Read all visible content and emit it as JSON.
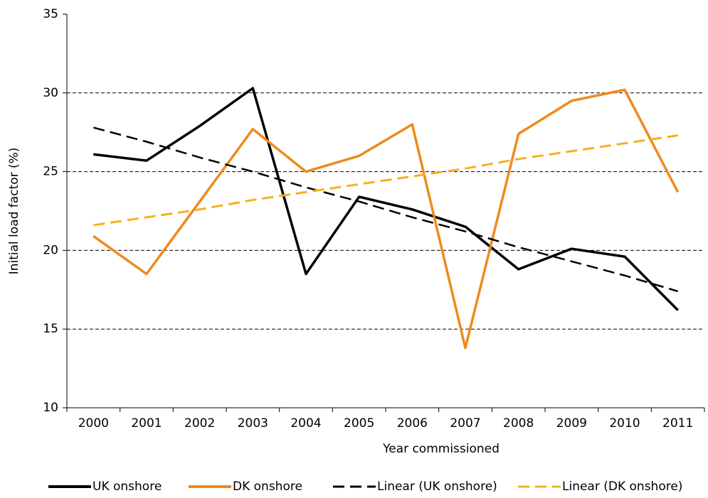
{
  "chart_data": {
    "type": "line",
    "x_label": "Year commissioned",
    "y_label": "Initial load factor (%)",
    "categories": [
      "2000",
      "2001",
      "2002",
      "2003",
      "2004",
      "2005",
      "2006",
      "2007",
      "2008",
      "2009",
      "2010",
      "2011"
    ],
    "series": [
      {
        "name": "UK onshore",
        "color": "#000000",
        "dashed": false,
        "values": [
          26.1,
          25.7,
          27.9,
          30.3,
          18.5,
          23.4,
          22.6,
          21.5,
          18.8,
          20.1,
          19.6,
          16.2
        ]
      },
      {
        "name": "DK onshore",
        "color": "#ee8a1e",
        "dashed": false,
        "values": [
          20.9,
          18.5,
          23.1,
          27.7,
          25.0,
          26.0,
          28.0,
          13.8,
          27.4,
          29.5,
          30.2,
          23.7
        ]
      },
      {
        "name": "Linear (UK onshore)",
        "color": "#000000",
        "dashed": true,
        "values": [
          27.8,
          26.9,
          25.9,
          25.0,
          24.0,
          23.1,
          22.1,
          21.2,
          20.2,
          19.3,
          18.4,
          17.4
        ]
      },
      {
        "name": "Linear (DK onshore)",
        "color": "#f5b120",
        "dashed": true,
        "values": [
          21.6,
          22.1,
          22.6,
          23.2,
          23.7,
          24.2,
          24.7,
          25.2,
          25.8,
          26.3,
          26.8,
          27.3
        ]
      }
    ],
    "ylim": [
      10,
      35
    ],
    "yticks": [
      10,
      15,
      20,
      25,
      30,
      35
    ],
    "grid": true,
    "legend": "bottom"
  }
}
